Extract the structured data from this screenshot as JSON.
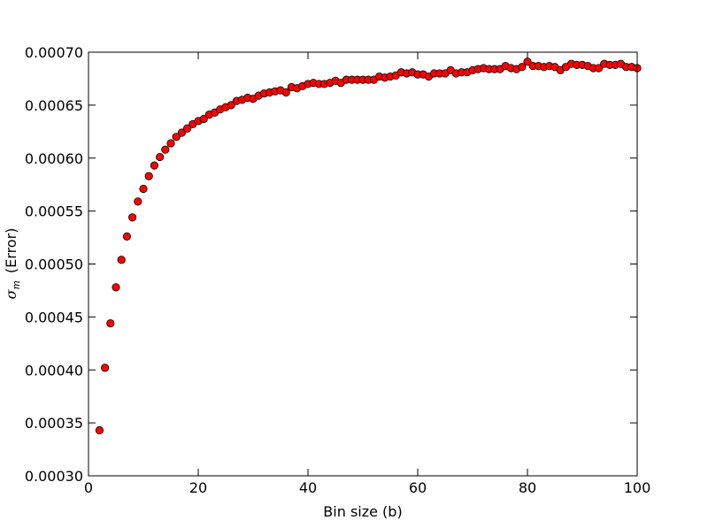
{
  "chart_data": {
    "type": "scatter",
    "xlabel": "Bin size (b)",
    "ylabel": {
      "symbol": "σ",
      "subscript": "m",
      "text": "(Error)"
    },
    "color": "#ff0000",
    "edgecolor": "#000000",
    "grid": false,
    "xlim": [
      0,
      100
    ],
    "xticks": [
      0,
      20,
      40,
      60,
      80,
      100
    ],
    "ylim": [
      0.0003,
      0.0007
    ],
    "yticks": [
      {
        "value": 0.0003,
        "label": "0.00030"
      },
      {
        "value": 0.00035,
        "label": "0.00035"
      },
      {
        "value": 0.0004,
        "label": "0.00040"
      },
      {
        "value": 0.00045,
        "label": "0.00045"
      },
      {
        "value": 0.0005,
        "label": "0.00050"
      },
      {
        "value": 0.00055,
        "label": "0.00055"
      },
      {
        "value": 0.0006,
        "label": "0.00060"
      },
      {
        "value": 0.00065,
        "label": "0.00065"
      },
      {
        "value": 0.0007,
        "label": "0.00070"
      }
    ],
    "x": [
      2,
      3,
      4,
      5,
      6,
      7,
      8,
      9,
      10,
      11,
      12,
      13,
      14,
      15,
      16,
      17,
      18,
      19,
      20,
      21,
      22,
      23,
      24,
      25,
      26,
      27,
      28,
      29,
      30,
      31,
      32,
      33,
      34,
      35,
      36,
      37,
      38,
      39,
      40,
      41,
      42,
      43,
      44,
      45,
      46,
      47,
      48,
      49,
      50,
      51,
      52,
      53,
      54,
      55,
      56,
      57,
      58,
      59,
      60,
      61,
      62,
      63,
      64,
      65,
      66,
      67,
      68,
      69,
      70,
      71,
      72,
      73,
      74,
      75,
      76,
      77,
      78,
      79,
      80,
      81,
      82,
      83,
      84,
      85,
      86,
      87,
      88,
      89,
      90,
      91,
      92,
      93,
      94,
      95,
      96,
      97,
      98,
      99,
      100
    ],
    "values": [
      0.000343,
      0.000402,
      0.000444,
      0.000478,
      0.000504,
      0.000526,
      0.000544,
      0.000559,
      0.000571,
      0.000583,
      0.000593,
      0.000601,
      0.000608,
      0.000614,
      0.00062,
      0.000624,
      0.000628,
      0.000632,
      0.000635,
      0.000637,
      0.000641,
      0.000643,
      0.000646,
      0.000648,
      0.00065,
      0.000654,
      0.000655,
      0.000657,
      0.000656,
      0.000659,
      0.000661,
      0.000662,
      0.000663,
      0.000664,
      0.000662,
      0.000667,
      0.000666,
      0.000668,
      0.00067,
      0.000671,
      0.00067,
      0.00067,
      0.000671,
      0.000673,
      0.000671,
      0.000674,
      0.000674,
      0.000674,
      0.000674,
      0.000674,
      0.000674,
      0.000677,
      0.000676,
      0.000677,
      0.000678,
      0.000681,
      0.00068,
      0.000681,
      0.000679,
      0.000679,
      0.000677,
      0.00068,
      0.00068,
      0.00068,
      0.000683,
      0.00068,
      0.000681,
      0.000681,
      0.000683,
      0.000684,
      0.000685,
      0.000684,
      0.000684,
      0.000684,
      0.000687,
      0.000685,
      0.000684,
      0.000686,
      0.000691,
      0.000687,
      0.000687,
      0.000686,
      0.000687,
      0.000686,
      0.000683,
      0.000686,
      0.000689,
      0.000688,
      0.000688,
      0.000687,
      0.000685,
      0.000685,
      0.000689,
      0.000688,
      0.000688,
      0.000689,
      0.000686,
      0.000686,
      0.000685
    ]
  }
}
